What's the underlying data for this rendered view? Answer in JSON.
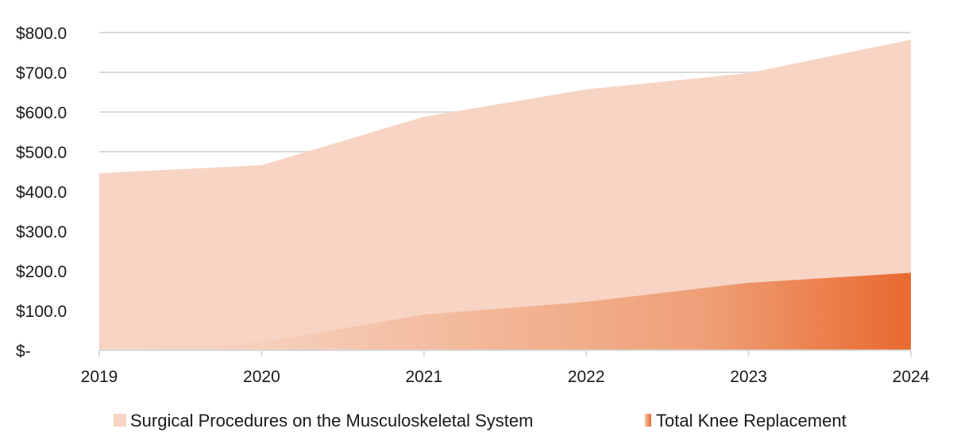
{
  "chart_data": {
    "type": "area",
    "x": [
      "2019",
      "2020",
      "2021",
      "2022",
      "2023",
      "2024"
    ],
    "ylim": [
      0,
      800
    ],
    "y_ticks": [
      {
        "value": 0,
        "label": "$-"
      },
      {
        "value": 100,
        "label": "$100.0"
      },
      {
        "value": 200,
        "label": "$200.0"
      },
      {
        "value": 300,
        "label": "$300.0"
      },
      {
        "value": 400,
        "label": "$400.0"
      },
      {
        "value": 500,
        "label": "$500.0"
      },
      {
        "value": 600,
        "label": "$600.0"
      },
      {
        "value": 700,
        "label": "$700.0"
      },
      {
        "value": 800,
        "label": "$800.0"
      }
    ],
    "grid": true,
    "legend_position": "bottom",
    "series": [
      {
        "name": "Surgical Procedures on the Musculoskeletal System",
        "values": [
          446,
          466,
          588,
          657,
          698,
          782
        ],
        "color": "#f7d4c3",
        "fill": "solid"
      },
      {
        "name": "Total Knee Replacement",
        "values": [
          0,
          20,
          90,
          122,
          170,
          195
        ],
        "color": "#e8703a",
        "fill": "gradient"
      }
    ]
  }
}
